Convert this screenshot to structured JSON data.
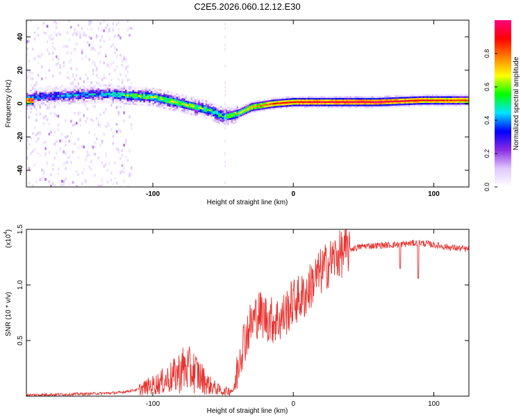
{
  "title": "C2E5.2026.060.12.12.E30",
  "chart_data": [
    {
      "type": "heatmap",
      "xlabel": "Height of straight line (km)",
      "ylabel": "Frequency (Hz)",
      "xlim": [
        -190,
        125
      ],
      "ylim": [
        -50,
        50
      ],
      "xticks": [
        -100,
        0,
        100
      ],
      "yticks": [
        -40,
        -20,
        0,
        20,
        40
      ],
      "colorbar": {
        "label": "Normalized spectral amplitude",
        "range": [
          0.0,
          1.0
        ],
        "ticks": [
          0.0,
          0.2,
          0.4,
          0.6,
          0.8
        ],
        "tick_labels": [
          "0.0",
          "0.2",
          "0.4",
          "0.6",
          "0.8"
        ],
        "colormap": [
          "#ffffff",
          "#e0c8ff",
          "#8a2be2",
          "#0000ff",
          "#00e5ff",
          "#00ff00",
          "#ffff00",
          "#ff8000",
          "#ff0000",
          "#ff0080"
        ]
      },
      "ridge": [
        {
          "x": -185,
          "f": 4,
          "a": 0.35
        },
        {
          "x": -160,
          "f": 5,
          "a": 0.4
        },
        {
          "x": -135,
          "f": 6,
          "a": 0.4
        },
        {
          "x": -120,
          "f": 5,
          "a": 0.55
        },
        {
          "x": -100,
          "f": 4,
          "a": 0.6
        },
        {
          "x": -80,
          "f": 0,
          "a": 0.6
        },
        {
          "x": -60,
          "f": -4,
          "a": 0.55
        },
        {
          "x": -50,
          "f": -8,
          "a": 0.5
        },
        {
          "x": -40,
          "f": -6,
          "a": 0.65
        },
        {
          "x": -30,
          "f": -2,
          "a": 0.75
        },
        {
          "x": -15,
          "f": 0,
          "a": 0.85
        },
        {
          "x": 0,
          "f": 1,
          "a": 0.9
        },
        {
          "x": 30,
          "f": 1,
          "a": 0.95
        },
        {
          "x": 60,
          "f": 1,
          "a": 0.98
        },
        {
          "x": 90,
          "f": 2,
          "a": 0.9
        },
        {
          "x": 125,
          "f": 2,
          "a": 0.85
        }
      ]
    },
    {
      "type": "line",
      "xlabel": "Height of straight line (km)",
      "ylabel": "SNR (10 * v/v)",
      "yscale_label": "(x10",
      "yscale_exp": "4",
      "xlim": [
        -190,
        125
      ],
      "ylim": [
        0,
        1.5
      ],
      "xticks": [
        -100,
        0,
        100
      ],
      "yticks": [
        0.5,
        1.0,
        1.5
      ],
      "ytick_labels": [
        "0.5",
        "1.0",
        "1.5"
      ],
      "color": "#e8332f",
      "series": [
        {
          "x": -190,
          "y": 0.01
        },
        {
          "x": -150,
          "y": 0.02
        },
        {
          "x": -125,
          "y": 0.03
        },
        {
          "x": -110,
          "y": 0.06
        },
        {
          "x": -95,
          "y": 0.12
        },
        {
          "x": -85,
          "y": 0.18
        },
        {
          "x": -78,
          "y": 0.25
        },
        {
          "x": -70,
          "y": 0.22
        },
        {
          "x": -60,
          "y": 0.1
        },
        {
          "x": -50,
          "y": 0.04
        },
        {
          "x": -42,
          "y": 0.06
        },
        {
          "x": -38,
          "y": 0.4
        },
        {
          "x": -32,
          "y": 0.6
        },
        {
          "x": -25,
          "y": 0.75
        },
        {
          "x": -15,
          "y": 0.68
        },
        {
          "x": -8,
          "y": 0.7
        },
        {
          "x": 0,
          "y": 0.85
        },
        {
          "x": 8,
          "y": 0.9
        },
        {
          "x": 15,
          "y": 1.05
        },
        {
          "x": 22,
          "y": 1.15
        },
        {
          "x": 30,
          "y": 1.25
        },
        {
          "x": 40,
          "y": 1.32
        },
        {
          "x": 50,
          "y": 1.35
        },
        {
          "x": 70,
          "y": 1.36
        },
        {
          "x": 90,
          "y": 1.38
        },
        {
          "x": 110,
          "y": 1.34
        },
        {
          "x": 125,
          "y": 1.32
        }
      ],
      "dips": [
        {
          "x": 76,
          "y": 1.15
        },
        {
          "x": 89,
          "y": 1.06
        }
      ]
    }
  ]
}
